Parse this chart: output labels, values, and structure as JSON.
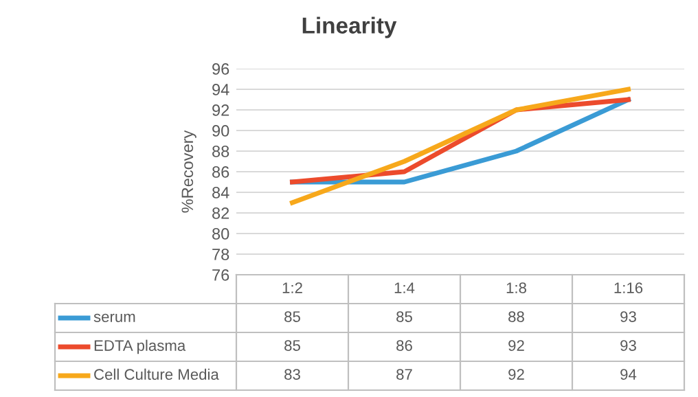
{
  "chart_data": {
    "type": "line",
    "title": "Linearity",
    "ylabel": "%Recovery",
    "categories": [
      "1:2",
      "1:4",
      "1:8",
      "1:16"
    ],
    "series": [
      {
        "name": "serum",
        "color": "#3a9bd5",
        "values": [
          85,
          85,
          88,
          93
        ]
      },
      {
        "name": "EDTA plasma",
        "color": "#ec4b2c",
        "values": [
          85,
          86,
          92,
          93
        ]
      },
      {
        "name": "Cell Culture Media",
        "color": "#f7a81b",
        "values": [
          83,
          87,
          92,
          94
        ]
      }
    ],
    "ylim": [
      76,
      96
    ],
    "yticks": [
      76,
      78,
      80,
      82,
      84,
      86,
      88,
      90,
      92,
      94,
      96
    ],
    "grid": "y",
    "legend": "bottom",
    "data_labels": true,
    "marker": "none",
    "line_style": "solid"
  }
}
